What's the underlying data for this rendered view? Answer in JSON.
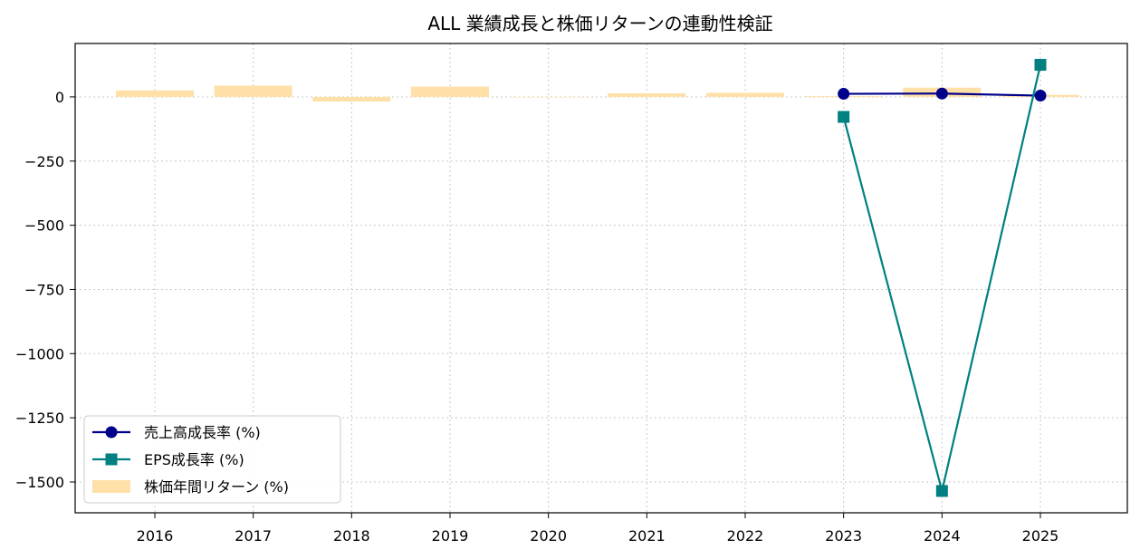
{
  "chart_data": {
    "type": "bar+line",
    "title": "ALL 業績成長と株価リターンの連動性検証",
    "xlabel": "",
    "ylabel": "",
    "categories": [
      "2016",
      "2017",
      "2018",
      "2019",
      "2020",
      "2021",
      "2022",
      "2023",
      "2024",
      "2025"
    ],
    "ylim": [
      -1620,
      208
    ],
    "yticks": [
      0,
      -250,
      -500,
      -750,
      -1000,
      -1250,
      -1500
    ],
    "ytick_labels": [
      "0",
      "−250",
      "−500",
      "−750",
      "−1000",
      "−1250",
      "−1500"
    ],
    "grid": true,
    "legend_position": "lower-left",
    "series": [
      {
        "name": "株価年間リターン (%)",
        "kind": "bar",
        "color": "#ffe0a8",
        "values": [
          25,
          44,
          -18,
          40,
          0,
          14,
          16,
          3,
          36,
          8
        ]
      },
      {
        "name": "売上高成長率 (%)",
        "kind": "line",
        "marker": "circle",
        "color": "#00008b",
        "values": [
          null,
          null,
          null,
          null,
          null,
          null,
          null,
          12,
          13,
          5
        ]
      },
      {
        "name": "EPS成長率 (%)",
        "kind": "line",
        "marker": "square",
        "color": "#008080",
        "values": [
          null,
          null,
          null,
          null,
          null,
          null,
          null,
          -78,
          -1535,
          125
        ]
      }
    ]
  }
}
